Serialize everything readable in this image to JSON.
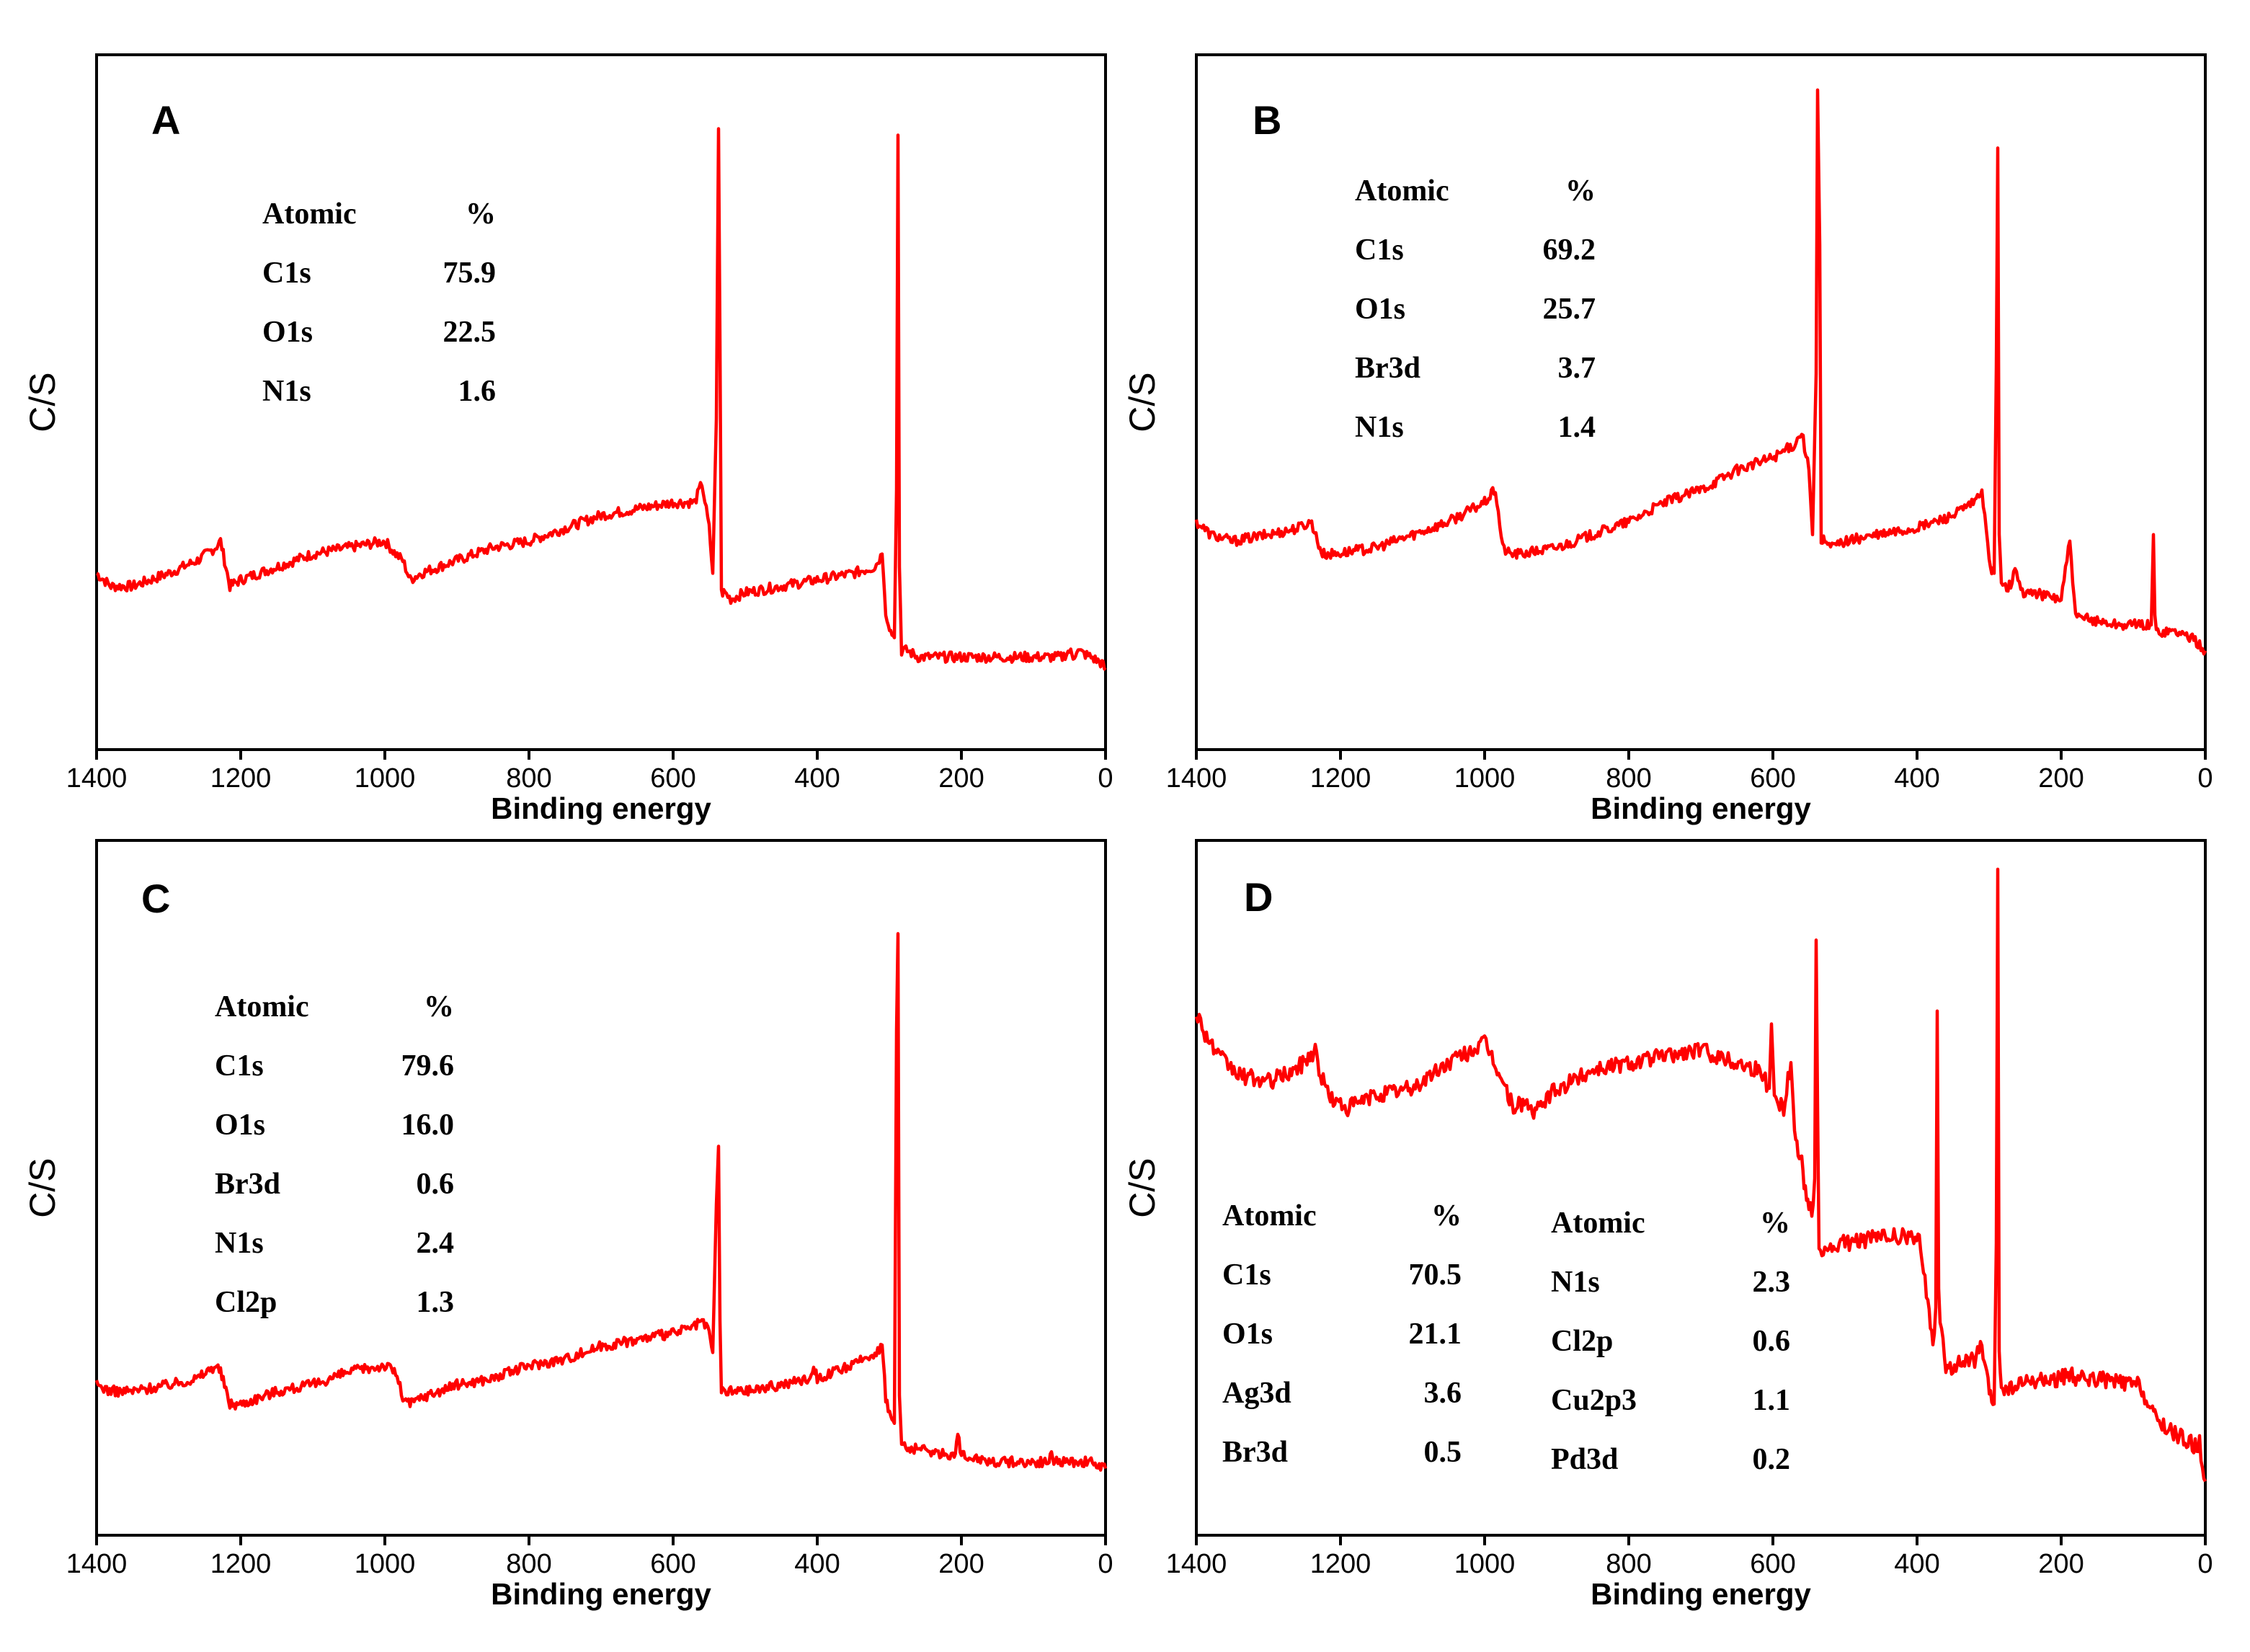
{
  "colors": {
    "spectrum": "#ff0000",
    "axis": "#000000"
  },
  "chart_data": [
    {
      "type": "line",
      "panel_label": "A",
      "xlabel": "Binding energy",
      "ylabel": "C/S",
      "xlim": [
        1400,
        0
      ],
      "ylim": [
        0,
        100
      ],
      "xticks": [
        "1400",
        "1200",
        "1000",
        "800",
        "600",
        "400",
        "200",
        "0"
      ],
      "table": {
        "headers": [
          "Atomic",
          "%"
        ],
        "rows": [
          [
            "C1s",
            "75.9"
          ],
          [
            "O1s",
            "22.5"
          ],
          [
            "N1s",
            "1.6"
          ]
        ]
      },
      "series": [
        {
          "name": "spectrum",
          "x": [
            1400,
            1380,
            1350,
            1300,
            1260,
            1235,
            1228,
            1215,
            1200,
            1150,
            1100,
            1050,
            1000,
            985,
            975,
            965,
            950,
            900,
            850,
            800,
            750,
            700,
            650,
            600,
            570,
            560,
            550,
            545,
            540,
            537,
            535,
            533,
            528,
            520,
            500,
            450,
            400,
            350,
            320,
            310,
            305,
            298,
            293,
            290,
            288,
            286,
            283,
            275,
            260,
            200,
            150,
            100,
            60,
            50,
            45,
            40,
            20,
            5,
            0
          ],
          "y": [
            24,
            22,
            22,
            24,
            26,
            28,
            29,
            22,
            23,
            25,
            27,
            28,
            29,
            27,
            26,
            23,
            24,
            26,
            28,
            29,
            31,
            33,
            34,
            35,
            35,
            38,
            31,
            24,
            48,
            93,
            60,
            21,
            21,
            20,
            21,
            22,
            23,
            24,
            25,
            27,
            18,
            15,
            14,
            37,
            92,
            25,
            12,
            12,
            11,
            11,
            11,
            11,
            11,
            12,
            11,
            12,
            11,
            10,
            9
          ]
        }
      ]
    },
    {
      "type": "line",
      "panel_label": "B",
      "xlabel": "Binding energy",
      "ylabel": "C/S",
      "xlim": [
        1400,
        0
      ],
      "ylim": [
        0,
        100
      ],
      "xticks": [
        "1400",
        "1200",
        "1000",
        "800",
        "600",
        "400",
        "200",
        "0"
      ],
      "table": {
        "headers": [
          "Atomic",
          "%"
        ],
        "rows": [
          [
            "C1s",
            "69.2"
          ],
          [
            "O1s",
            "25.7"
          ],
          [
            "Br3d",
            "3.7"
          ],
          [
            "N1s",
            "1.4"
          ]
        ]
      },
      "series": [
        {
          "name": "spectrum",
          "x": [
            1400,
            1380,
            1350,
            1300,
            1260,
            1240,
            1232,
            1225,
            1210,
            1150,
            1100,
            1050,
            1000,
            985,
            975,
            965,
            950,
            900,
            850,
            800,
            750,
            700,
            650,
            600,
            570,
            560,
            550,
            545,
            540,
            538,
            535,
            533,
            528,
            520,
            500,
            450,
            400,
            350,
            320,
            310,
            302,
            298,
            293,
            290,
            288,
            286,
            283,
            270,
            262,
            258,
            254,
            240,
            200,
            192,
            188,
            184,
            180,
            170,
            120,
            80,
            75,
            72,
            70,
            68,
            60,
            40,
            20,
            0
          ],
          "y": [
            32,
            30,
            29,
            30,
            31,
            32,
            29,
            27,
            27,
            28,
            30,
            32,
            35,
            37,
            28,
            27,
            27,
            28,
            30,
            32,
            35,
            37,
            40,
            42,
            44,
            46,
            40,
            30,
            55,
            99,
            75,
            29,
            29,
            28,
            29,
            30,
            31,
            33,
            35,
            37,
            28,
            25,
            24,
            56,
            90,
            30,
            22,
            22,
            25,
            22,
            21,
            21,
            20,
            26,
            29,
            23,
            17,
            17,
            16,
            16,
            16,
            30,
            17,
            15,
            15,
            15,
            14,
            12
          ]
        }
      ]
    },
    {
      "type": "line",
      "panel_label": "C",
      "xlabel": "Binding energy",
      "ylabel": "C/S",
      "xlim": [
        1400,
        0
      ],
      "ylim": [
        0,
        100
      ],
      "xticks": [
        "1400",
        "1200",
        "1000",
        "800",
        "600",
        "400",
        "200",
        "0"
      ],
      "table": {
        "headers": [
          "Atomic",
          "%"
        ],
        "rows": [
          [
            "C1s",
            "79.6"
          ],
          [
            "O1s",
            "16.0"
          ],
          [
            "Br3d",
            "0.6"
          ],
          [
            "N1s",
            "2.4"
          ],
          [
            "Cl2p",
            "1.3"
          ]
        ]
      },
      "series": [
        {
          "name": "spectrum",
          "x": [
            1400,
            1380,
            1350,
            1300,
            1260,
            1235,
            1228,
            1215,
            1200,
            1150,
            1100,
            1050,
            1000,
            985,
            975,
            965,
            950,
            900,
            850,
            800,
            750,
            700,
            650,
            600,
            570,
            560,
            550,
            545,
            540,
            537,
            535,
            533,
            528,
            520,
            500,
            450,
            410,
            405,
            400,
            350,
            320,
            310,
            305,
            298,
            293,
            290,
            288,
            286,
            283,
            275,
            260,
            210,
            205,
            200,
            195,
            150,
            100,
            80,
            75,
            70,
            40,
            20,
            5,
            0
          ],
          "y": [
            20,
            19,
            19,
            20,
            21,
            23,
            22,
            17,
            17,
            19,
            20,
            22,
            23,
            22,
            18,
            17,
            18,
            20,
            21,
            23,
            24,
            26,
            27,
            28,
            29,
            30,
            28,
            25,
            48,
            57,
            30,
            19,
            19,
            19,
            19,
            20,
            21,
            23,
            21,
            23,
            25,
            26,
            18,
            15,
            14,
            75,
            90,
            18,
            11,
            10,
            10,
            9,
            12,
            9,
            9,
            8,
            8,
            8,
            9,
            8,
            8,
            8,
            7,
            7
          ]
        }
      ]
    },
    {
      "type": "line",
      "panel_label": "D",
      "xlabel": "Binding energy",
      "ylabel": "C/S",
      "xlim": [
        1400,
        0
      ],
      "ylim": [
        0,
        100
      ],
      "xticks": [
        "1400",
        "1200",
        "1000",
        "800",
        "600",
        "400",
        "200",
        "0"
      ],
      "table": {
        "headers": [
          "Atomic",
          "%"
        ],
        "rows": [
          [
            "C1s",
            "70.5"
          ],
          [
            "O1s",
            "21.1"
          ],
          [
            "Ag3d",
            "3.6"
          ],
          [
            "Br3d",
            "0.5"
          ]
        ]
      },
      "table2": {
        "headers": [
          "Atomic",
          "%"
        ],
        "rows": [
          [
            "N1s",
            "2.3"
          ],
          [
            "Cl2p",
            "0.6"
          ],
          [
            "Cu2p3",
            "1.1"
          ],
          [
            "Pd3d",
            "0.2"
          ]
        ]
      },
      "series": [
        {
          "name": "spectrum",
          "x": [
            1400,
            1390,
            1370,
            1340,
            1300,
            1260,
            1235,
            1228,
            1210,
            1190,
            1150,
            1100,
            1050,
            1000,
            990,
            975,
            960,
            945,
            930,
            910,
            880,
            850,
            800,
            750,
            700,
            650,
            620,
            605,
            602,
            598,
            585,
            575,
            570,
            565,
            560,
            555,
            550,
            546,
            542,
            540,
            538,
            536,
            534,
            530,
            520,
            500,
            450,
            410,
            395,
            385,
            378,
            374,
            372,
            370,
            368,
            366,
            364,
            360,
            350,
            320,
            310,
            305,
            298,
            293,
            290,
            288,
            286,
            283,
            275,
            260,
            200,
            185,
            180,
            175,
            150,
            100,
            90,
            80,
            75,
            70,
            50,
            20,
            10,
            8,
            6,
            4,
            0
          ],
          "y": [
            78,
            75,
            71,
            68,
            67,
            69,
            72,
            68,
            64,
            63,
            65,
            66,
            70,
            73,
            71,
            67,
            63,
            64,
            62,
            65,
            67,
            69,
            70,
            71,
            72,
            70,
            69,
            66,
            76,
            65,
            63,
            70,
            60,
            56,
            55,
            50,
            48,
            46,
            52,
            89,
            63,
            42,
            41,
            41,
            41,
            42,
            43,
            43,
            42,
            33,
            26,
            32,
            78,
            36,
            29,
            30,
            26,
            22,
            23,
            24,
            26,
            22,
            18,
            17,
            42,
            100,
            25,
            20,
            19,
            20,
            21,
            22,
            19,
            21,
            21,
            20,
            20,
            17,
            16,
            15,
            13,
            11,
            10,
            12,
            9,
            8,
            5
          ]
        }
      ]
    }
  ]
}
